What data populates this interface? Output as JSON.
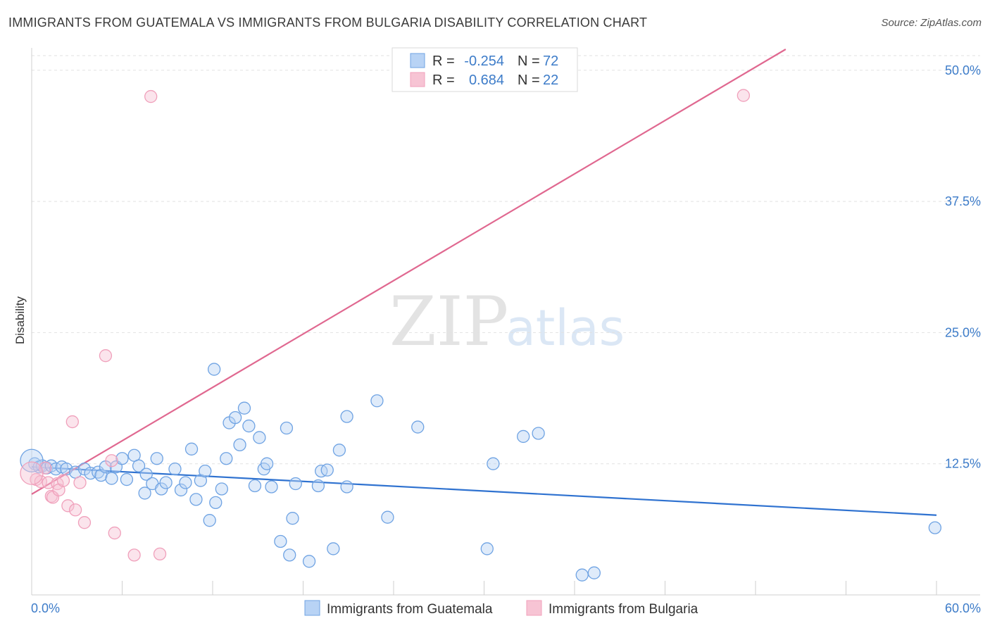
{
  "title": "IMMIGRANTS FROM GUATEMALA VS IMMIGRANTS FROM BULGARIA DISABILITY CORRELATION CHART",
  "source": "Source: ZipAtlas.com",
  "watermark": {
    "zip": "ZIP",
    "atlas": "atlas"
  },
  "colors": {
    "blue": "#6fa3e3",
    "blue_line": "#2f72d0",
    "pink": "#f0a0bb",
    "pink_line": "#e06890",
    "tick_text": "#3d7cc9"
  },
  "legend_box": {
    "rows": [
      {
        "r_label": "R =",
        "r_value": "-0.254",
        "n_label": "N =",
        "n_value": "72",
        "color": "#b8d3f5"
      },
      {
        "r_label": "R =",
        "r_value": "0.684",
        "n_label": "N =",
        "n_value": "22",
        "color": "#f7c4d4"
      }
    ]
  },
  "bottom_legend": [
    {
      "label": "Immigrants from Guatemala",
      "color": "#b8d3f5"
    },
    {
      "label": "Immigrants from Bulgaria",
      "color": "#f7c4d4"
    }
  ],
  "chart_data": {
    "type": "scatter",
    "title": "IMMIGRANTS FROM GUATEMALA VS IMMIGRANTS FROM BULGARIA DISABILITY CORRELATION CHART",
    "xlabel": "",
    "ylabel": "Disability",
    "xlim": [
      0,
      60
    ],
    "ylim": [
      0,
      52
    ],
    "x_tick_labels": [
      "0.0%",
      "60.0%"
    ],
    "y_ticks": [
      12.5,
      25.0,
      37.5,
      50.0
    ],
    "y_tick_labels": [
      "12.5%",
      "25.0%",
      "37.5%",
      "50.0%"
    ],
    "grid": "horizontal dashed",
    "legend_position": "top-center",
    "series": [
      {
        "name": "Immigrants from Guatemala",
        "color": "#6fa3e3",
        "trend": {
          "x": [
            0,
            60
          ],
          "y": [
            12.2,
            7.6
          ]
        },
        "points": [
          [
            0.2,
            12.5
          ],
          [
            0.5,
            12.2
          ],
          [
            0.7,
            12.3
          ],
          [
            1.0,
            12.1
          ],
          [
            1.3,
            12.3
          ],
          [
            1.6,
            12.0
          ],
          [
            2.0,
            12.2
          ],
          [
            2.3,
            12.0
          ],
          [
            2.9,
            11.7
          ],
          [
            3.5,
            12.0
          ],
          [
            3.9,
            11.6
          ],
          [
            4.4,
            11.7
          ],
          [
            4.6,
            11.4
          ],
          [
            4.9,
            12.2
          ],
          [
            5.3,
            11.1
          ],
          [
            5.6,
            12.2
          ],
          [
            6.0,
            13.0
          ],
          [
            6.3,
            11.0
          ],
          [
            6.8,
            13.3
          ],
          [
            7.1,
            12.3
          ],
          [
            7.6,
            11.5
          ],
          [
            7.5,
            9.7
          ],
          [
            8.0,
            10.6
          ],
          [
            8.3,
            13.0
          ],
          [
            8.6,
            10.1
          ],
          [
            8.9,
            10.7
          ],
          [
            9.5,
            12.0
          ],
          [
            9.9,
            10.0
          ],
          [
            10.2,
            10.7
          ],
          [
            10.6,
            13.9
          ],
          [
            10.9,
            9.1
          ],
          [
            11.2,
            10.9
          ],
          [
            11.5,
            11.8
          ],
          [
            11.8,
            7.1
          ],
          [
            12.2,
            8.8
          ],
          [
            12.6,
            10.1
          ],
          [
            12.9,
            13.0
          ],
          [
            12.1,
            21.5
          ],
          [
            13.1,
            16.4
          ],
          [
            13.5,
            16.9
          ],
          [
            13.8,
            14.3
          ],
          [
            14.1,
            17.8
          ],
          [
            14.4,
            16.1
          ],
          [
            14.8,
            10.4
          ],
          [
            15.1,
            15.0
          ],
          [
            15.4,
            12.0
          ],
          [
            15.6,
            12.5
          ],
          [
            15.9,
            10.3
          ],
          [
            16.5,
            5.1
          ],
          [
            16.9,
            15.9
          ],
          [
            17.1,
            3.8
          ],
          [
            17.3,
            7.3
          ],
          [
            17.5,
            10.6
          ],
          [
            18.4,
            3.2
          ],
          [
            19.0,
            10.4
          ],
          [
            19.2,
            11.8
          ],
          [
            19.6,
            11.9
          ],
          [
            20.0,
            4.4
          ],
          [
            20.4,
            13.8
          ],
          [
            20.9,
            10.3
          ],
          [
            20.9,
            17.0
          ],
          [
            22.9,
            18.5
          ],
          [
            23.6,
            7.4
          ],
          [
            25.6,
            16.0
          ],
          [
            30.2,
            4.4
          ],
          [
            30.6,
            12.5
          ],
          [
            32.6,
            15.1
          ],
          [
            33.6,
            15.4
          ],
          [
            36.5,
            1.9
          ],
          [
            37.3,
            2.1
          ],
          [
            59.9,
            6.4
          ],
          [
            0.0,
            12.8
          ]
        ]
      },
      {
        "name": "Immigrants from Bulgaria",
        "color": "#f0a0bb",
        "trend": {
          "x": [
            0,
            50
          ],
          "y": [
            9.6,
            52.0
          ]
        },
        "points": [
          [
            0.3,
            11.0
          ],
          [
            0.6,
            10.8
          ],
          [
            0.9,
            12.1
          ],
          [
            1.1,
            10.7
          ],
          [
            1.3,
            9.4
          ],
          [
            1.4,
            9.3
          ],
          [
            1.7,
            10.6
          ],
          [
            1.8,
            10.0
          ],
          [
            2.1,
            10.9
          ],
          [
            2.4,
            8.5
          ],
          [
            2.7,
            16.5
          ],
          [
            2.9,
            8.1
          ],
          [
            3.2,
            10.7
          ],
          [
            3.5,
            6.9
          ],
          [
            4.9,
            22.8
          ],
          [
            5.3,
            12.8
          ],
          [
            5.5,
            5.9
          ],
          [
            6.8,
            3.8
          ],
          [
            7.9,
            47.5
          ],
          [
            8.5,
            3.9
          ],
          [
            47.2,
            47.6
          ],
          [
            0.0,
            11.6
          ]
        ]
      }
    ]
  }
}
